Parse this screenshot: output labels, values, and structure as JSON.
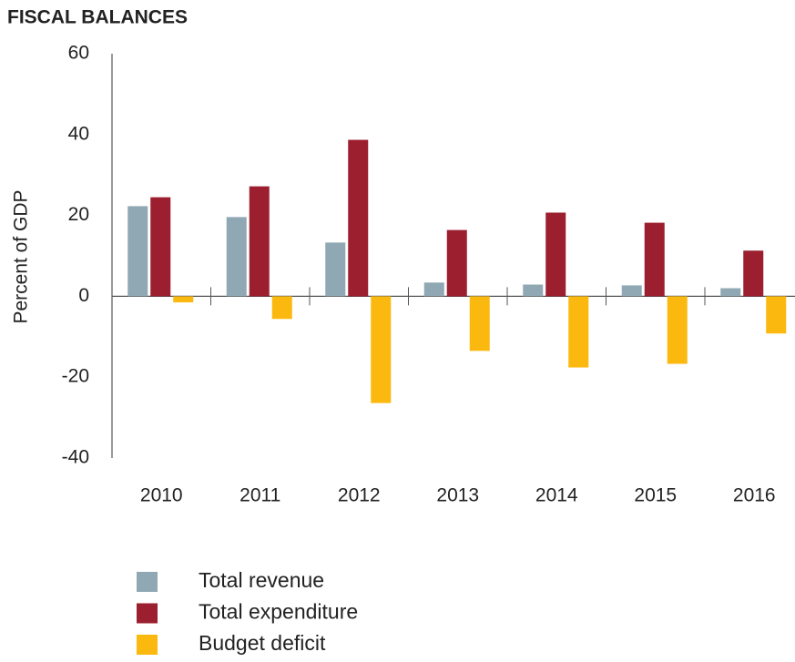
{
  "chart_data": {
    "type": "bar",
    "title": "FISCAL BALANCES",
    "y_label": "Percent of GDP",
    "categories": [
      "2010",
      "2011",
      "2012",
      "2013",
      "2014",
      "2015",
      "2016"
    ],
    "series": [
      {
        "name": "Total revenue",
        "color": "#8fa8b3",
        "values": [
          22.3,
          19.6,
          13.3,
          3.4,
          2.9,
          2.7,
          2.0
        ]
      },
      {
        "name": "Total expenditure",
        "color": "#9b1f2e",
        "values": [
          24.5,
          27.2,
          38.7,
          16.4,
          20.7,
          18.2,
          11.3
        ]
      },
      {
        "name": "Budget deficit",
        "color": "#fbb80f",
        "values": [
          -1.5,
          -5.6,
          -26.4,
          -13.5,
          -17.6,
          -16.7,
          -9.2
        ]
      }
    ],
    "ylim": [
      -40,
      60
    ],
    "yticks": [
      -40,
      -20,
      0,
      20,
      40,
      60
    ],
    "grid": false,
    "legend": "bottom"
  }
}
